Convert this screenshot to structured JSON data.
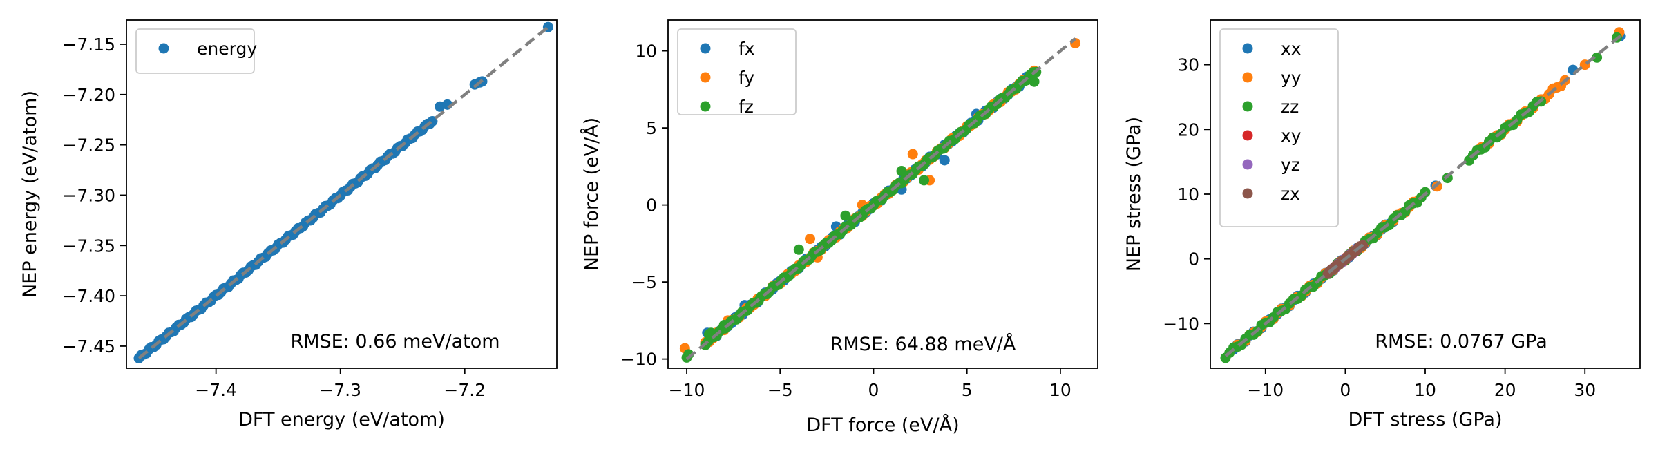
{
  "colors": {
    "identity_line": "#808080",
    "energy": "#1f77b4",
    "fx": "#1f77b4",
    "fy": "#ff7f0e",
    "fz": "#2ca02c",
    "xx": "#1f77b4",
    "yy": "#ff7f0e",
    "zz": "#2ca02c",
    "xy": "#d62728",
    "yz": "#9467bd",
    "zx": "#8c564b"
  },
  "chart_data": [
    {
      "type": "scatter",
      "xlabel": "DFT energy (eV/atom)",
      "ylabel": "NEP energy (eV/atom)",
      "xlim": [
        -7.472,
        -7.126
      ],
      "ylim": [
        -7.472,
        -7.126
      ],
      "xticks": [
        -7.4,
        -7.3,
        -7.2
      ],
      "xtick_labels": [
        "−7.4",
        "−7.3",
        "−7.2"
      ],
      "yticks": [
        -7.45,
        -7.4,
        -7.35,
        -7.3,
        -7.25,
        -7.2,
        -7.15
      ],
      "ytick_labels": [
        "−7.45",
        "−7.40",
        "−7.35",
        "−7.30",
        "−7.25",
        "−7.20",
        "−7.15"
      ],
      "annotation": "RMSE: 0.66 meV/atom",
      "legend_position": "upper-left",
      "identity_line": [
        -7.462,
        -7.133
      ],
      "series": [
        {
          "name": "energy",
          "color_key": "energy",
          "segments": [
            [
              -7.462,
              -7.226,
              0.002
            ]
          ],
          "points": [
            [
              -7.22,
              -7.212
            ],
            [
              -7.214,
              -7.21
            ],
            [
              -7.192,
              -7.19
            ],
            [
              -7.188,
              -7.188
            ],
            [
              -7.186,
              -7.187
            ],
            [
              -7.133,
              -7.133
            ]
          ]
        }
      ]
    },
    {
      "type": "scatter",
      "xlabel": "DFT force (eV/Å)",
      "ylabel": "NEP force (eV/Å)",
      "xlim": [
        -11.0,
        12.0
      ],
      "ylim": [
        -10.6,
        12.0
      ],
      "xticks": [
        -10,
        -5,
        0,
        5,
        10
      ],
      "xtick_labels": [
        "−10",
        "−5",
        "0",
        "5",
        "10"
      ],
      "yticks": [
        -10,
        -5,
        0,
        5,
        10
      ],
      "ytick_labels": [
        "−10",
        "−5",
        "0",
        "5",
        "10"
      ],
      "annotation": "RMSE: 64.88 meV/Å",
      "legend_position": "upper-left",
      "identity_line": [
        -10.0,
        10.8
      ],
      "series": [
        {
          "name": "fx",
          "color_key": "fx",
          "segments": [
            [
              -9.0,
              8.5,
              0.2
            ]
          ],
          "points": [
            [
              -8.9,
              -8.3
            ],
            [
              -6.9,
              -6.5
            ],
            [
              -2.0,
              -1.4
            ],
            [
              3.8,
              2.9
            ],
            [
              1.5,
              1.0
            ],
            [
              5.5,
              5.9
            ],
            [
              8.0,
              8.1
            ]
          ]
        },
        {
          "name": "fy",
          "color_key": "fy",
          "segments": [
            [
              -9.0,
              8.6,
              0.2
            ]
          ],
          "points": [
            [
              -10.1,
              -9.3
            ],
            [
              -8.5,
              -8.5
            ],
            [
              -7.8,
              -7.5
            ],
            [
              -3.4,
              -2.2
            ],
            [
              -3.0,
              -3.4
            ],
            [
              -0.6,
              0.0
            ],
            [
              3.0,
              1.6
            ],
            [
              2.1,
              3.3
            ],
            [
              7.6,
              7.6
            ],
            [
              10.8,
              10.5
            ]
          ]
        },
        {
          "name": "fz",
          "color_key": "fz",
          "segments": [
            [
              -9.0,
              8.8,
              0.15
            ]
          ],
          "points": [
            [
              -10.0,
              -9.9
            ],
            [
              -9.9,
              -9.7
            ],
            [
              -8.8,
              -8.4
            ],
            [
              -8.7,
              -8.3
            ],
            [
              -8.0,
              -7.8
            ],
            [
              -4.0,
              -2.9
            ],
            [
              -1.5,
              -0.7
            ],
            [
              1.5,
              2.2
            ],
            [
              2.7,
              1.6
            ],
            [
              8.6,
              8.0
            ],
            [
              8.2,
              8.1
            ]
          ]
        }
      ]
    },
    {
      "type": "scatter",
      "xlabel": "DFT stress (GPa)",
      "ylabel": "NEP stress (GPa)",
      "xlim": [
        -16.9,
        36.9
      ],
      "ylim": [
        -16.9,
        36.9
      ],
      "xticks": [
        -10,
        0,
        10,
        20,
        30
      ],
      "xtick_labels": [
        "−10",
        "0",
        "10",
        "20",
        "30"
      ],
      "yticks": [
        -10,
        0,
        10,
        20,
        30
      ],
      "ytick_labels": [
        "−10",
        "0",
        "10",
        "20",
        "30"
      ],
      "annotation": "RMSE: 0.0767 GPa",
      "legend_position": "upper-left",
      "identity_line": [
        -15.0,
        34.9
      ],
      "series": [
        {
          "name": "xx",
          "color_key": "xx",
          "segments": [
            [
              -14.0,
              6.0,
              0.5
            ]
          ],
          "points": [
            [
              -2.5,
              -2.2
            ],
            [
              11.3,
              11.3
            ],
            [
              28.5,
              29.2
            ],
            [
              34.4,
              34.4
            ]
          ]
        },
        {
          "name": "yy",
          "color_key": "yy",
          "segments": [
            [
              -13.5,
              9.0,
              0.5
            ],
            [
              17.0,
              27.5,
              0.5
            ]
          ],
          "points": [
            [
              11.5,
              11.2
            ],
            [
              30.0,
              30.0
            ],
            [
              34.3,
              35.0
            ]
          ]
        },
        {
          "name": "zz",
          "color_key": "zz",
          "segments": [
            [
              -15.0,
              10.0,
              0.5
            ],
            [
              15.5,
              24.5,
              0.5
            ]
          ],
          "points": [
            [
              12.8,
              12.5
            ],
            [
              31.5,
              31.1
            ],
            [
              34.0,
              34.2
            ]
          ]
        },
        {
          "name": "xy",
          "color_key": "xy",
          "segments": [
            [
              -1.5,
              1.5,
              0.2
            ]
          ],
          "points": []
        },
        {
          "name": "yz",
          "color_key": "yz",
          "segments": [
            [
              -1.5,
              1.5,
              0.2
            ]
          ],
          "points": []
        },
        {
          "name": "zx",
          "color_key": "zx",
          "segments": [
            [
              -2.2,
              2.2,
              0.2
            ]
          ],
          "points": []
        }
      ]
    }
  ]
}
